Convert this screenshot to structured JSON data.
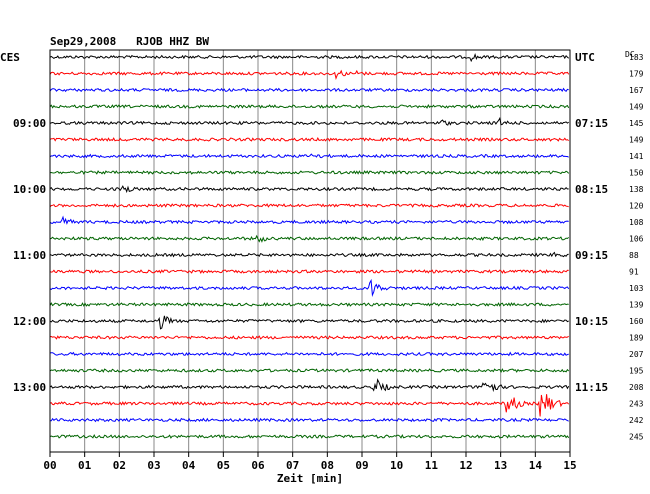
{
  "chart_data": {
    "type": "line",
    "title": "Sep29,2008   RJOB HHZ BW",
    "left_timezone": "CES",
    "right_timezone": "UTC",
    "dc_label": "DC",
    "xlabel": "Zeit [min]",
    "xlim": [
      0,
      15
    ],
    "x_ticks": [
      "00",
      "01",
      "02",
      "03",
      "04",
      "05",
      "06",
      "07",
      "08",
      "09",
      "10",
      "11",
      "12",
      "13",
      "14",
      "15"
    ],
    "trace_colors": [
      "#000000",
      "#ff0000",
      "#0000ff",
      "#006400"
    ],
    "left_time_labels": [
      {
        "trace_index": 4,
        "text": "09:00"
      },
      {
        "trace_index": 8,
        "text": "10:00"
      },
      {
        "trace_index": 12,
        "text": "11:00"
      },
      {
        "trace_index": 16,
        "text": "12:00"
      },
      {
        "trace_index": 20,
        "text": "13:00"
      }
    ],
    "right_time_labels": [
      {
        "trace_index": 0,
        "text": "UTC"
      },
      {
        "trace_index": 4,
        "text": "07:15"
      },
      {
        "trace_index": 8,
        "text": "08:15"
      },
      {
        "trace_index": 12,
        "text": "09:15"
      },
      {
        "trace_index": 16,
        "text": "10:15"
      },
      {
        "trace_index": 20,
        "text": "11:15"
      }
    ],
    "dc_values": [
      183,
      179,
      167,
      149,
      145,
      149,
      141,
      150,
      138,
      120,
      108,
      106,
      88,
      91,
      103,
      139,
      160,
      189,
      207,
      195,
      208,
      243,
      242,
      245
    ],
    "events": [
      {
        "trace": 0,
        "minute": 12.2,
        "amplitude": 4
      },
      {
        "trace": 1,
        "minute": 8.3,
        "amplitude": 5
      },
      {
        "trace": 1,
        "minute": 8.9,
        "amplitude": 3
      },
      {
        "trace": 4,
        "minute": 11.3,
        "amplitude": 4
      },
      {
        "trace": 4,
        "minute": 13.0,
        "amplitude": 5
      },
      {
        "trace": 6,
        "minute": 7.6,
        "amplitude": 4
      },
      {
        "trace": 8,
        "minute": 2.1,
        "amplitude": 6
      },
      {
        "trace": 10,
        "minute": 0.4,
        "amplitude": 5
      },
      {
        "trace": 11,
        "minute": 6.0,
        "amplitude": 5
      },
      {
        "trace": 12,
        "minute": 14.6,
        "amplitude": 4
      },
      {
        "trace": 14,
        "minute": 9.3,
        "amplitude": 9
      },
      {
        "trace": 16,
        "minute": 3.2,
        "amplitude": 8
      },
      {
        "trace": 20,
        "minute": 9.4,
        "amplitude": 9
      },
      {
        "trace": 20,
        "minute": 12.5,
        "amplitude": 13
      },
      {
        "trace": 21,
        "minute": 13.2,
        "amplitude": 12
      },
      {
        "trace": 21,
        "minute": 14.2,
        "amplitude": 16
      }
    ],
    "grid": true
  }
}
